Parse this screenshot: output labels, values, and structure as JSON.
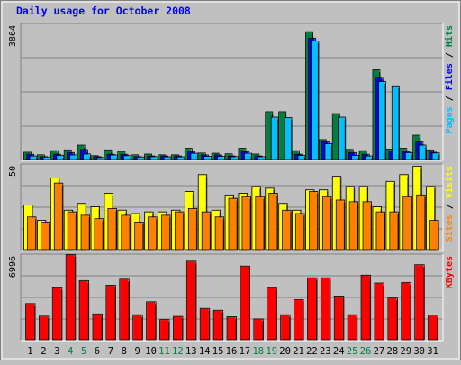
{
  "colors": {
    "background": "#c0c0c0",
    "panel": "#c0c0c0",
    "grid": "#808080",
    "title": "#0000ff",
    "hits": "#008040",
    "files": "#0000ff",
    "pages": "#00c0ff",
    "visits": "#ffff00",
    "sites": "#ff8000",
    "kbytes": "#ff0000",
    "weekend_label": "#008040",
    "weekday_label": "#000000"
  },
  "chart_data": [
    {
      "type": "bar",
      "title": "Daily usage for October 2008",
      "ymax_label": "3864",
      "ylabel_parts": [
        {
          "text": "Pages",
          "color": "#00c0ff"
        },
        {
          "text": " / ",
          "color": "#000000"
        },
        {
          "text": "Files",
          "color": "#0000ff"
        },
        {
          "text": " / ",
          "color": "#000000"
        },
        {
          "text": "Hits",
          "color": "#008040"
        }
      ],
      "ylim": [
        0,
        3864
      ],
      "categories": [
        "1",
        "2",
        "3",
        "4",
        "5",
        "6",
        "7",
        "8",
        "9",
        "10",
        "11",
        "12",
        "13",
        "14",
        "15",
        "16",
        "17",
        "18",
        "19",
        "20",
        "21",
        "22",
        "23",
        "24",
        "25",
        "26",
        "27",
        "28",
        "29",
        "30",
        "31"
      ],
      "weekend_days": [
        "4",
        "5",
        "11",
        "12",
        "18",
        "19",
        "25",
        "26"
      ],
      "series": [
        {
          "name": "Hits",
          "values": [
            199,
            123,
            246,
            270,
            409,
            98,
            270,
            223,
            123,
            145,
            123,
            123,
            316,
            176,
            170,
            152,
            316,
            146,
            1390,
            1390,
            246,
            3740,
            570,
            1334,
            282,
            246,
            2620,
            293,
            316,
            700,
            269
          ]
        },
        {
          "name": "Files",
          "values": [
            140,
            70,
            140,
            190,
            280,
            70,
            140,
            140,
            70,
            90,
            90,
            90,
            210,
            120,
            120,
            90,
            210,
            90,
            0,
            0,
            140,
            3550,
            500,
            0,
            190,
            140,
            2400,
            210,
            210,
            500,
            200
          ]
        },
        {
          "name": "Pages",
          "values": [
            90,
            60,
            110,
            120,
            150,
            45,
            120,
            100,
            60,
            70,
            65,
            65,
            170,
            80,
            80,
            70,
            170,
            70,
            1230,
            1220,
            110,
            3470,
            450,
            1230,
            110,
            90,
            2280,
            2150,
            190,
            410,
            180
          ]
        }
      ]
    },
    {
      "type": "bar",
      "ymax_label": "50",
      "ylabel_parts": [
        {
          "text": "Sites",
          "color": "#ff8000"
        },
        {
          "text": " / ",
          "color": "#000000"
        },
        {
          "text": "Visits",
          "color": "#ffff00"
        }
      ],
      "ylim": [
        0,
        50
      ],
      "categories": [
        "1",
        "2",
        "3",
        "4",
        "5",
        "6",
        "7",
        "8",
        "9",
        "10",
        "11",
        "12",
        "13",
        "14",
        "15",
        "16",
        "17",
        "18",
        "19",
        "20",
        "21",
        "22",
        "23",
        "24",
        "25",
        "26",
        "27",
        "28",
        "29",
        "30",
        "31"
      ],
      "series": [
        {
          "name": "Visits",
          "values": [
            26,
            17,
            42,
            23,
            27,
            25,
            33,
            23,
            21,
            22,
            22,
            23,
            34,
            44,
            23,
            32,
            33,
            37,
            36,
            27,
            23,
            35,
            35,
            43,
            37,
            37,
            25,
            40,
            44,
            49,
            37
          ]
        },
        {
          "name": "Sites",
          "values": [
            19,
            16,
            39,
            22,
            20,
            18,
            24,
            20,
            16,
            19,
            20,
            22,
            24,
            22,
            19,
            30,
            31,
            31,
            33,
            23,
            21,
            34,
            31,
            29,
            28,
            28,
            22,
            22,
            31,
            32,
            17
          ]
        }
      ]
    },
    {
      "type": "bar",
      "ymax_label": "6996",
      "ylabel_parts": [
        {
          "text": "KBytes",
          "color": "#ff0000"
        }
      ],
      "ylim": [
        0,
        6996
      ],
      "categories": [
        "1",
        "2",
        "3",
        "4",
        "5",
        "6",
        "7",
        "8",
        "9",
        "10",
        "11",
        "12",
        "13",
        "14",
        "15",
        "16",
        "17",
        "18",
        "19",
        "20",
        "21",
        "22",
        "23",
        "24",
        "25",
        "26",
        "27",
        "28",
        "29",
        "30",
        "31"
      ],
      "series": [
        {
          "name": "KBytes",
          "values": [
            2950,
            1910,
            4260,
            6996,
            4850,
            2100,
            4470,
            4960,
            2030,
            3100,
            1620,
            1890,
            6450,
            2550,
            2400,
            1860,
            6050,
            1680,
            4270,
            2030,
            3270,
            5080,
            5080,
            3580,
            2030,
            5300,
            4650,
            3440,
            4700,
            6160,
            1990
          ]
        }
      ]
    }
  ]
}
